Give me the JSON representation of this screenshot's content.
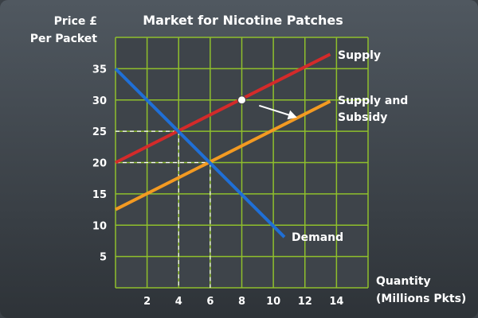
{
  "chart_data": {
    "type": "line",
    "title": "Market for Nicotine Patches",
    "ylabel": [
      "Price £",
      "Per Packet"
    ],
    "xlabel": [
      "Quantity",
      "(Millions Pkts)"
    ],
    "xlim": [
      0,
      16
    ],
    "ylim": [
      0,
      40
    ],
    "x_ticks": [
      2,
      4,
      6,
      8,
      10,
      12,
      14
    ],
    "y_ticks": [
      5,
      10,
      15,
      20,
      25,
      30,
      35
    ],
    "grid": true,
    "series": [
      {
        "name": "Supply",
        "color": "#d42a2a",
        "points": [
          [
            0,
            20
          ],
          [
            13.6,
            37.3
          ]
        ]
      },
      {
        "name": "Supply and Subsidy",
        "name_lines": [
          "Supply and",
          "Subsidy"
        ],
        "color": "#f39a22",
        "points": [
          [
            0,
            12.5
          ],
          [
            13.6,
            29.8
          ]
        ]
      },
      {
        "name": "Demand",
        "color": "#1f6fd6",
        "points": [
          [
            0,
            35
          ],
          [
            10.7,
            8.1
          ]
        ]
      }
    ],
    "equilibria": [
      {
        "x": 4,
        "y": 25
      },
      {
        "x": 6,
        "y": 20
      }
    ],
    "marker_point": {
      "x": 8,
      "y": 30
    },
    "annotation_arrow": {
      "from": [
        9.1,
        29.1
      ],
      "to": [
        11.5,
        27.2
      ]
    },
    "colors": {
      "grid": "#8fbf2c",
      "background": "#3e444a",
      "text": "#ffffff"
    }
  }
}
